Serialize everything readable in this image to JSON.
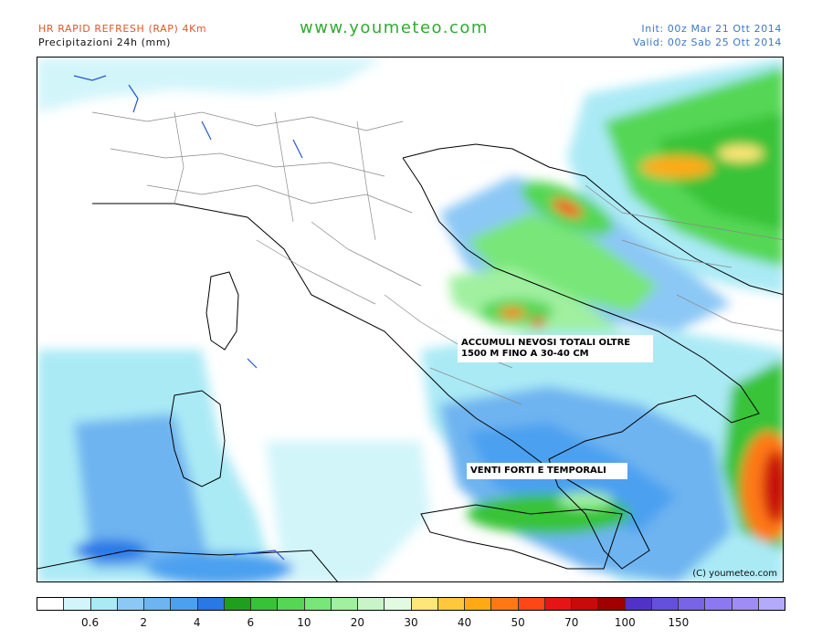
{
  "header": {
    "model": "HR RAPID REFRESH (RAP) 4Km",
    "field": "Precipitazioni 24h (mm)",
    "site": "www.youmeteo.com",
    "init": "Init: 00z Mar  21 Ott 2014",
    "valid": "Valid: 00z Sab  25 Ott 2014"
  },
  "annotations": {
    "snow": [
      "ACCUMULI NEVOSI TOTALI OLTRE",
      "1500 M FINO A 30-40 CM"
    ],
    "storms": "VENTI FORTI E TEMPORALI"
  },
  "copyright": "(C) youmeteo.com",
  "legend": {
    "colors": [
      "#ffffff",
      "#d2f5fa",
      "#aaeaf5",
      "#8cc8f5",
      "#6eb4f0",
      "#4ba0f0",
      "#2878e6",
      "#1ea01e",
      "#37c337",
      "#55d755",
      "#78e678",
      "#a0f0a0",
      "#c8f5c8",
      "#e1fae1",
      "#ffe678",
      "#ffc83c",
      "#ffaa14",
      "#ff7814",
      "#ff4614",
      "#e61414",
      "#c80a0a",
      "#a00000",
      "#5032c8",
      "#6450dc",
      "#7864e6",
      "#8c78f0",
      "#a08cf5",
      "#b4aafa"
    ],
    "labels": [
      {
        "text": "0.6",
        "boundary": 2
      },
      {
        "text": "2",
        "boundary": 4
      },
      {
        "text": "4",
        "boundary": 6
      },
      {
        "text": "6",
        "boundary": 8
      },
      {
        "text": "10",
        "boundary": 10
      },
      {
        "text": "20",
        "boundary": 12
      },
      {
        "text": "30",
        "boundary": 14
      },
      {
        "text": "40",
        "boundary": 16
      },
      {
        "text": "50",
        "boundary": 18
      },
      {
        "text": "70",
        "boundary": 20
      },
      {
        "text": "100",
        "boundary": 22
      },
      {
        "text": "150",
        "boundary": 24
      }
    ]
  }
}
